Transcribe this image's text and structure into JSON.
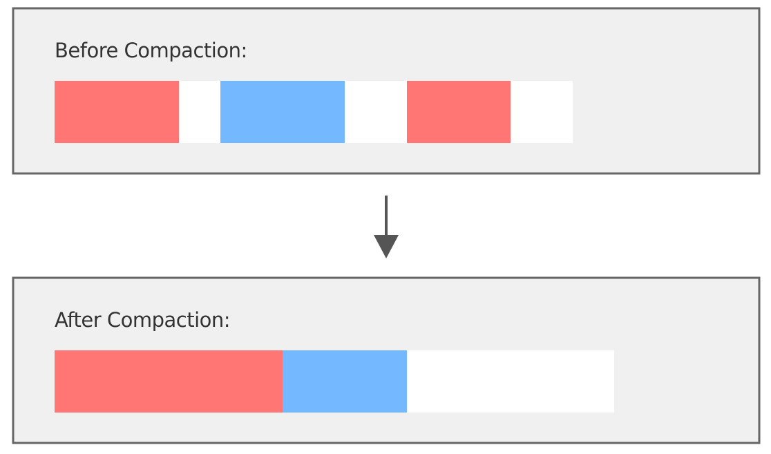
{
  "before": {
    "label": "Before Compaction:"
  },
  "after": {
    "label": "After Compaction:"
  }
}
